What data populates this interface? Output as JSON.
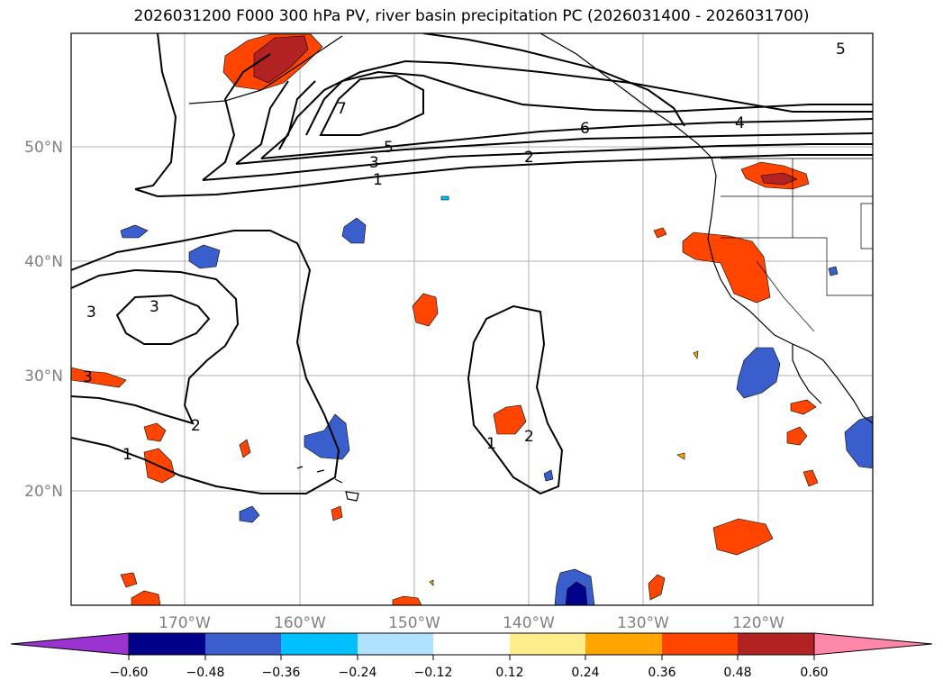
{
  "title": "2026031200 F000 300 hPa PV, river basin precipitation PC (2026031400 - 2026031700)",
  "lat_labels": [
    "50°N",
    "40°N",
    "30°N",
    "20°N"
  ],
  "lon_labels": [
    "170°W",
    "160°W",
    "150°W",
    "140°W",
    "130°W",
    "120°W"
  ],
  "colorbar": {
    "tick_labels": [
      "−0.60",
      "−0.48",
      "−0.36",
      "−0.24",
      "−0.12",
      "0.12",
      "0.24",
      "0.36",
      "0.48",
      "0.60"
    ],
    "colors": [
      "#9a33d0",
      "#00008b",
      "#3a5fcd",
      "#00bfff",
      "#b0e2ff",
      "#ffffff",
      "#ffec8b",
      "#ffa500",
      "#ff4500",
      "#b22222",
      "#ff88aa"
    ]
  },
  "pv_contour_labels": [
    "1",
    "2",
    "3",
    "4",
    "5",
    "6",
    "7",
    "5",
    "3",
    "3",
    "3",
    "2",
    "1",
    "1",
    "2"
  ],
  "precip_colors": {
    "pos_light": "#ffec8b",
    "pos_mid": "#ffa500",
    "pos_strong": "#ff4500",
    "pos_max": "#b22222",
    "neg_light": "#00bfff",
    "neg_mid": "#3a5fcd",
    "neg_max": "#00008b"
  }
}
